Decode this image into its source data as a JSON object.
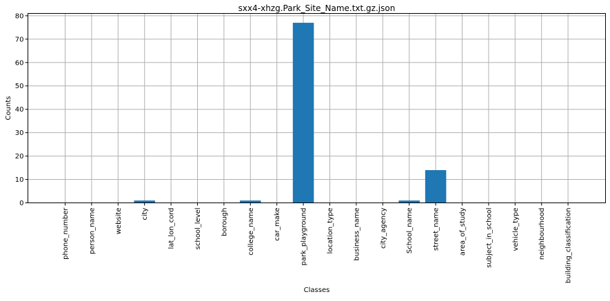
{
  "chart_data": {
    "type": "bar",
    "title": "sxx4-xhzg.Park_Site_Name.txt.gz.json",
    "xlabel": "Classes",
    "ylabel": "Counts",
    "categories": [
      "phone_number",
      "person_name",
      "website",
      "city",
      "lat_lon_cord",
      "school_level",
      "borough",
      "college_name",
      "car_make",
      "park_playground",
      "location_type",
      "business_name",
      "city_agency",
      "School_name",
      "street_name",
      "area_of_study",
      "subject_in_school",
      "vehicle_type",
      "neighbourhood",
      "building_classification"
    ],
    "values": [
      0,
      0,
      0,
      1,
      0,
      0,
      0,
      1,
      0,
      77,
      0,
      0,
      0,
      1,
      14,
      0,
      0,
      0,
      0,
      0
    ],
    "ylim": [
      0,
      81
    ],
    "yticks": [
      0,
      10,
      20,
      30,
      40,
      50,
      60,
      70,
      80
    ],
    "grid": true,
    "bar_color": "#1f77b4"
  }
}
